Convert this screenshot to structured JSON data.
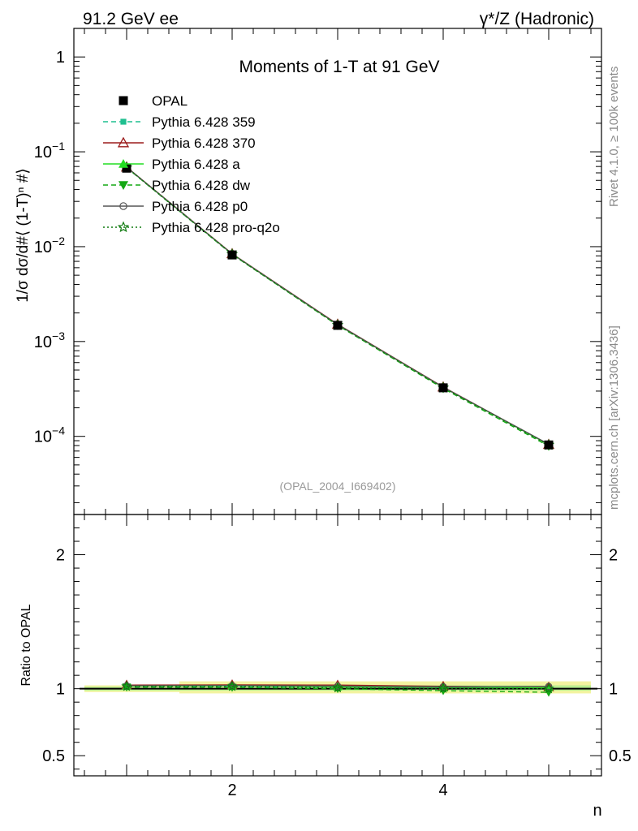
{
  "header": {
    "left": "91.2 GeV ee",
    "right": "γ*/Z (Hadronic)"
  },
  "side_text": {
    "top": "Rivet 4.1.0, ≥ 100k events",
    "bottom": "mcplots.cern.ch [arXiv:1306.3436]"
  },
  "chart_data": [
    {
      "type": "line",
      "title": "Moments of 1-T at 91 GeV",
      "ylabel": "1/σ  dσ/d#⟨ (1-T)ⁿ #⟩",
      "xlabel": "n",
      "annotation": "(OPAL_2004_I669402)",
      "yscale": "log",
      "xlim": [
        0.5,
        5.5
      ],
      "ylim": [
        1.5e-05,
        2
      ],
      "ytick_labels": [
        {
          "value": 1,
          "base": "1",
          "exp": ""
        },
        {
          "value": 0.1,
          "base": "10",
          "exp": "−1"
        },
        {
          "value": 0.01,
          "base": "10",
          "exp": "−2"
        },
        {
          "value": 0.001,
          "base": "10",
          "exp": "−3"
        },
        {
          "value": 0.0001,
          "base": "10",
          "exp": "−4"
        }
      ],
      "x": [
        1,
        2,
        3,
        4,
        5
      ],
      "series": [
        {
          "name": "OPAL",
          "color": "#000000",
          "marker": "square",
          "dash": "none",
          "values": [
            0.0672,
            0.00818,
            0.00148,
            0.000325,
            8.12e-05
          ]
        },
        {
          "name": "Pythia 6.428 359",
          "color": "#1fbf8f",
          "marker": "smallsquare",
          "dash": "dashed",
          "values": [
            0.0683,
            0.0083,
            0.0015,
            0.000328,
            8.2e-05
          ]
        },
        {
          "name": "Pythia 6.428 370",
          "color": "#9b1b1b",
          "marker": "triangle-open",
          "dash": "none",
          "values": [
            0.069,
            0.00842,
            0.00152,
            0.000331,
            8.22e-05
          ]
        },
        {
          "name": "Pythia 6.428 a",
          "color": "#22dd22",
          "marker": "triangle",
          "dash": "none",
          "values": [
            0.0686,
            0.00836,
            0.0015,
            0.000329,
            8.18e-05
          ]
        },
        {
          "name": "Pythia 6.428 dw",
          "color": "#14a814",
          "marker": "triangle-down",
          "dash": "dashed",
          "values": [
            0.068,
            0.00826,
            0.00148,
            0.00032,
            7.9e-05
          ]
        },
        {
          "name": "Pythia 6.428 p0",
          "color": "#555555",
          "marker": "circle-open",
          "dash": "none",
          "values": [
            0.0687,
            0.00838,
            0.00151,
            0.00033,
            8.26e-05
          ]
        },
        {
          "name": "Pythia 6.428 pro-q2o",
          "color": "#0f7a0f",
          "marker": "star",
          "dash": "dotted",
          "values": [
            0.0684,
            0.00832,
            0.00149,
            0.000326,
            8.12e-05
          ]
        }
      ]
    },
    {
      "type": "line",
      "ylabel": "Ratio to OPAL",
      "xlabel": "n",
      "xlim": [
        0.5,
        5.5
      ],
      "ylim": [
        0.35,
        2.3
      ],
      "ytick_labels": [
        "2",
        "1",
        "0.5"
      ],
      "ytick_values": [
        2,
        1,
        0.5
      ],
      "xtick_labels": [
        "2",
        "4"
      ],
      "xtick_values": [
        2,
        4
      ],
      "reference": 1,
      "bands": {
        "inner": [
          {
            "x": [
              0.6,
              1.5
            ],
            "lo": 0.985,
            "hi": 1.015
          },
          {
            "x": [
              1.5,
              5.4
            ],
            "lo": 0.985,
            "hi": 1.025
          }
        ],
        "outer": [
          {
            "x": [
              0.6,
              1.5
            ],
            "lo": 0.975,
            "hi": 1.025
          },
          {
            "x": [
              1.5,
              5.4
            ],
            "lo": 0.965,
            "hi": 1.055
          }
        ]
      },
      "x": [
        1,
        2,
        3,
        4,
        5
      ],
      "series": [
        {
          "name": "Pythia 6.428 359",
          "values": [
            1.016,
            1.015,
            1.013,
            1.01,
            1.01
          ]
        },
        {
          "name": "Pythia 6.428 370",
          "values": [
            1.027,
            1.029,
            1.027,
            1.018,
            1.012
          ]
        },
        {
          "name": "Pythia 6.428 a",
          "values": [
            1.021,
            1.022,
            1.014,
            1.012,
            1.007
          ]
        },
        {
          "name": "Pythia 6.428 dw",
          "values": [
            1.012,
            1.01,
            1.0,
            0.985,
            0.973
          ]
        },
        {
          "name": "Pythia 6.428 p0",
          "values": [
            1.022,
            1.024,
            1.02,
            1.015,
            1.017
          ]
        },
        {
          "name": "Pythia 6.428 pro-q2o",
          "values": [
            1.018,
            1.017,
            1.007,
            1.003,
            1.0
          ]
        }
      ]
    }
  ]
}
